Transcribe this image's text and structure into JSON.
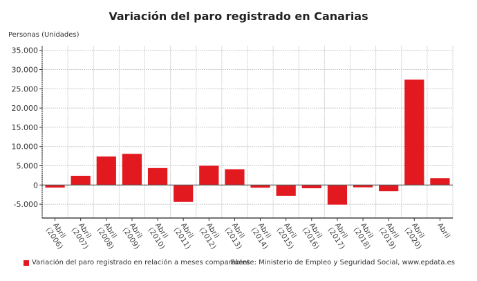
{
  "chart_data": {
    "type": "bar",
    "title": "Variación del paro registrado en Canarias",
    "ylabel": "Personas (Unidades)",
    "xlabel": "",
    "categories": [
      [
        "Abril",
        "(2006)"
      ],
      [
        "Abril",
        "(2007)"
      ],
      [
        "Abril",
        "(2008)"
      ],
      [
        "Abril",
        "(2009)"
      ],
      [
        "Abril",
        "(2010)"
      ],
      [
        "Abril",
        "(2011)"
      ],
      [
        "Abril",
        "(2012)"
      ],
      [
        "Abril",
        "(2013)"
      ],
      [
        "Abril",
        "(2014)"
      ],
      [
        "Abril",
        "(2015)"
      ],
      [
        "Abril",
        "(2016)"
      ],
      [
        "Abril",
        "(2017)"
      ],
      [
        "Abril",
        "(2018)"
      ],
      [
        "Abril",
        "(2019)"
      ],
      [
        "Abril",
        "(2020)"
      ],
      [
        "Abril",
        ""
      ]
    ],
    "series": [
      {
        "name": "Variación del paro registrado en relación a meses comparables",
        "color": "#e2191f",
        "values": [
          -660,
          2400,
          7400,
          8100,
          4400,
          -4400,
          5000,
          4100,
          -700,
          -2800,
          -840,
          -5100,
          -600,
          -1600,
          27400,
          1800
        ]
      }
    ],
    "ylim": [
      -7500,
      35000
    ],
    "yticks": [
      35000,
      30000,
      25000,
      20000,
      15000,
      10000,
      5000,
      0,
      -5000
    ],
    "ytick_labels": [
      "35.000",
      "30.000",
      "25.000",
      "20.000",
      "15.000",
      "10.000",
      "5.000",
      "0",
      "-5.000"
    ],
    "grid": true,
    "legend": "bottom-left",
    "source": "Fuente: Ministerio de Empleo y Seguridad Social, www.epdata.es"
  }
}
